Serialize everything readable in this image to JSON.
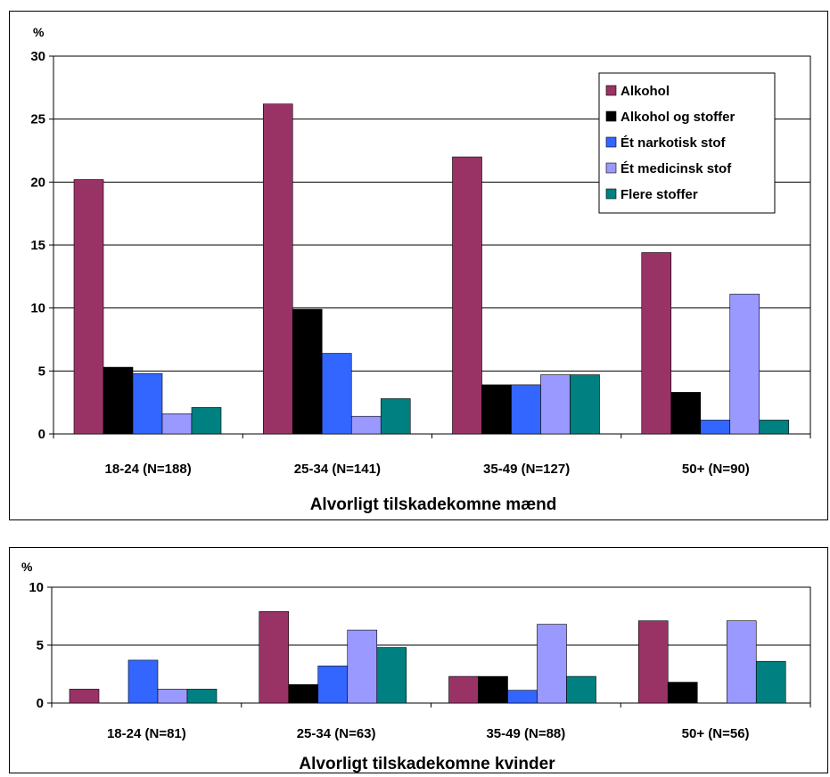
{
  "chart_data": [
    {
      "type": "bar",
      "ylabel": "%",
      "ylim": [
        0,
        30
      ],
      "yticks": [
        0,
        5,
        10,
        15,
        20,
        25,
        30
      ],
      "grid": true,
      "legend_position": "top-right",
      "xlabel": "Alvorligt tilskadekomne mænd",
      "categories": [
        "18-24 (N=188)",
        "25-34 (N=141)",
        "35-49 (N=127)",
        "50+ (N=90)"
      ],
      "series": [
        {
          "name": "Alkohol",
          "color": "#993366",
          "values": [
            20.2,
            26.2,
            22.0,
            14.4
          ]
        },
        {
          "name": "Alkohol og stoffer",
          "color": "#000000",
          "values": [
            5.3,
            9.9,
            3.9,
            3.3
          ]
        },
        {
          "name": "Ét narkotisk stof",
          "color": "#3366FF",
          "values": [
            4.8,
            6.4,
            3.9,
            1.1
          ]
        },
        {
          "name": "Ét medicinsk stof",
          "color": "#9999FF",
          "values": [
            1.6,
            1.4,
            4.7,
            11.1
          ]
        },
        {
          "name": "Flere stoffer",
          "color": "#008080",
          "values": [
            2.1,
            2.8,
            4.7,
            1.1
          ]
        }
      ]
    },
    {
      "type": "bar",
      "ylabel": "%",
      "ylim": [
        0,
        10
      ],
      "yticks": [
        0,
        5,
        10
      ],
      "grid": true,
      "xlabel": "Alvorligt tilskadekomne kvinder",
      "categories": [
        "18-24 (N=81)",
        "25-34 (N=63)",
        "35-49 (N=88)",
        "50+ (N=56)"
      ],
      "series": [
        {
          "name": "Alkohol",
          "color": "#993366",
          "values": [
            1.2,
            7.9,
            2.3,
            7.1
          ]
        },
        {
          "name": "Alkohol og stoffer",
          "color": "#000000",
          "values": [
            0,
            1.6,
            2.3,
            1.8
          ]
        },
        {
          "name": "Ét narkotisk stof",
          "color": "#3366FF",
          "values": [
            3.7,
            3.2,
            1.1,
            0
          ]
        },
        {
          "name": "Ét medicinsk stof",
          "color": "#9999FF",
          "values": [
            1.2,
            6.3,
            6.8,
            7.1
          ]
        },
        {
          "name": "Flere stoffer",
          "color": "#008080",
          "values": [
            1.2,
            4.8,
            2.3,
            3.6
          ]
        }
      ]
    }
  ]
}
